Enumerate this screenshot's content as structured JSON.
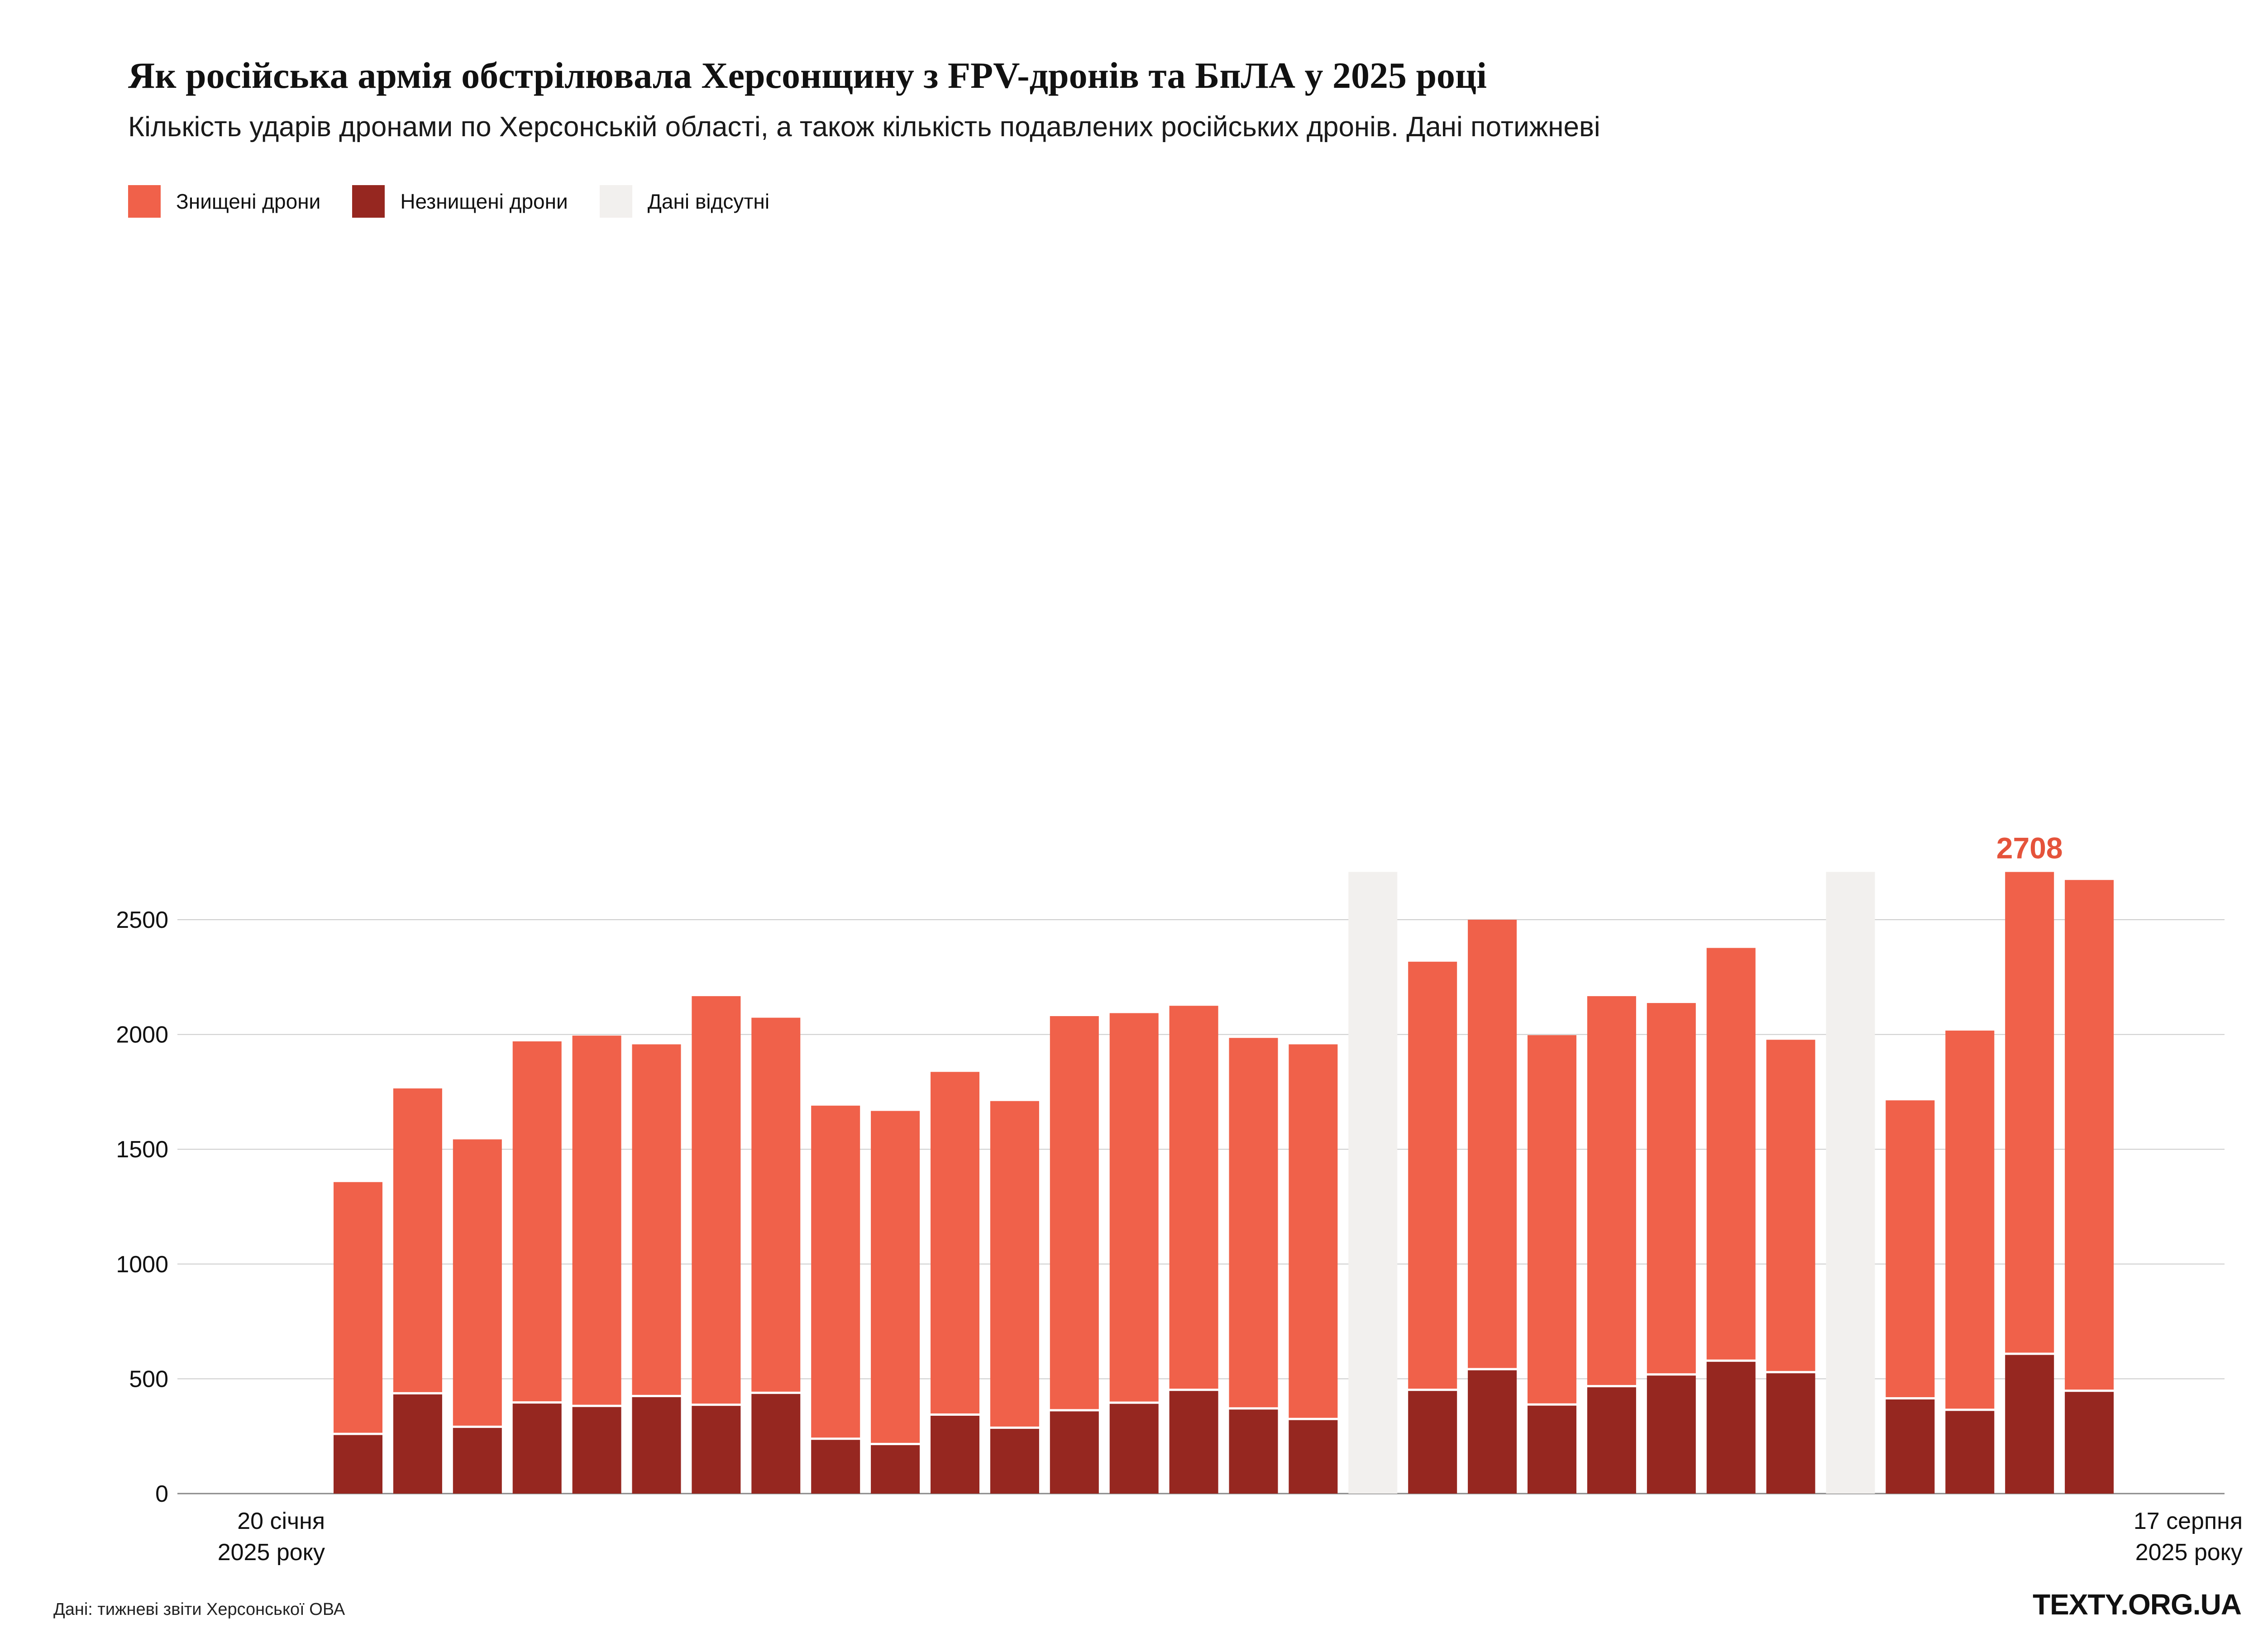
{
  "title": "Як російська армія обстрілювала Херсонщину з FPV-дронів та БпЛА у 2025 році",
  "subtitle": "Кількість ударів дронами по Херсонській області, а також кількість подавлених російських дронів. Дані потижневі",
  "legend": {
    "destroyed": "Знищені дрони",
    "not_destroyed": "Незнищені дрони",
    "missing": "Дані відсутні"
  },
  "colors": {
    "destroyed": "#f0614a",
    "not_destroyed": "#962720",
    "missing": "#f2f0ee",
    "grid": "#cccccc",
    "highlight": "#e5533b"
  },
  "source": "Дані: тижневі звіти Херсонської ОВА",
  "brand": "TEXTY.ORG.UA",
  "chart_data": {
    "type": "bar",
    "stacked": true,
    "title": "Як російська армія обстрілювала Херсонщину з FPV-дронів та БпЛА у 2025 році",
    "ylim": [
      0,
      2708
    ],
    "yticks": [
      0,
      500,
      1000,
      1500,
      2000,
      2500
    ],
    "x_start_label": [
      "20 січня",
      "2025 року"
    ],
    "x_end_label": [
      "17 серпня",
      "2025 року"
    ],
    "peak_label": "2708",
    "weeks": [
      {
        "not_destroyed": 265,
        "total": 1357
      },
      {
        "not_destroyed": 442,
        "total": 1765
      },
      {
        "not_destroyed": 296,
        "total": 1543
      },
      {
        "not_destroyed": 402,
        "total": 1970
      },
      {
        "not_destroyed": 387,
        "total": 1995
      },
      {
        "not_destroyed": 430,
        "total": 1957
      },
      {
        "not_destroyed": 392,
        "total": 2167
      },
      {
        "not_destroyed": 444,
        "total": 2073
      },
      {
        "not_destroyed": 244,
        "total": 1690
      },
      {
        "not_destroyed": 221,
        "total": 1667
      },
      {
        "not_destroyed": 349,
        "total": 1837
      },
      {
        "not_destroyed": 292,
        "total": 1710
      },
      {
        "not_destroyed": 368,
        "total": 2080
      },
      {
        "not_destroyed": 401,
        "total": 2093
      },
      {
        "not_destroyed": 457,
        "total": 2125
      },
      {
        "not_destroyed": 376,
        "total": 1985
      },
      {
        "not_destroyed": 330,
        "total": 1957
      },
      {
        "missing": true
      },
      {
        "not_destroyed": 457,
        "total": 2317
      },
      {
        "not_destroyed": 547,
        "total": 2500
      },
      {
        "not_destroyed": 393,
        "total": 1997
      },
      {
        "not_destroyed": 473,
        "total": 2167
      },
      {
        "not_destroyed": 524,
        "total": 2137
      },
      {
        "not_destroyed": 584,
        "total": 2377
      },
      {
        "not_destroyed": 534,
        "total": 1977
      },
      {
        "missing": true
      },
      {
        "not_destroyed": 420,
        "total": 1713
      },
      {
        "not_destroyed": 370,
        "total": 2017
      },
      {
        "not_destroyed": 614,
        "total": 2708
      },
      {
        "not_destroyed": 453,
        "total": 2673
      }
    ]
  }
}
